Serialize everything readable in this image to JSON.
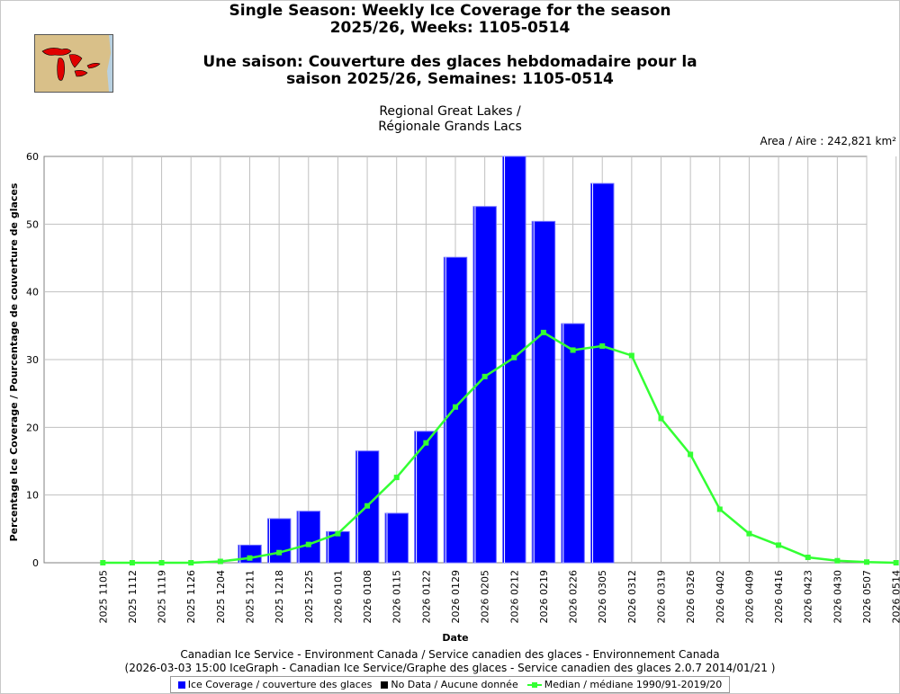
{
  "titles": {
    "en": "Single Season: Weekly Ice Coverage for the season\n2025/26, Weeks: 1105-0514",
    "fr": "Une saison: Couverture des glaces hebdomadaire pour la\nsaison 2025/26, Semaines: 1105-0514"
  },
  "region": "Regional Great Lakes /\nRégionale Grands Lacs",
  "area_label": "Area / Aire : 242,821 km²",
  "map_icon": "great-lakes-map-icon",
  "colors": {
    "bar": "#0000ff",
    "bar_edge": "#6a6aff",
    "median": "#33ff33",
    "grid": "#c0c0c0",
    "no_data": "#000000"
  },
  "chart_data": {
    "type": "bar",
    "xlabel": "Date",
    "ylabel": "Percentage Ice Coverage / Pourcentage de couverture de glaces",
    "ylim": [
      0,
      60
    ],
    "yticks": [
      0,
      10,
      20,
      30,
      40,
      50,
      60
    ],
    "grid": true,
    "legend_placement": "bottom",
    "categories": [
      "2025 1105",
      "2025 1112",
      "2025 1119",
      "2025 1126",
      "2025 1204",
      "2025 1211",
      "2025 1218",
      "2025 1225",
      "2026 0101",
      "2026 0108",
      "2026 0115",
      "2026 0122",
      "2026 0129",
      "2026 0205",
      "2026 0212",
      "2026 0219",
      "2026 0226",
      "2026 0305",
      "2026 0312",
      "2026 0319",
      "2026 0326",
      "2026 0402",
      "2026 0409",
      "2026 0416",
      "2026 0423",
      "2026 0430",
      "2026 0507",
      "2026 0514"
    ],
    "series": [
      {
        "name": "Ice Coverage / couverture des glaces",
        "type": "bar",
        "values": [
          null,
          null,
          null,
          null,
          null,
          2.6,
          6.5,
          7.6,
          4.6,
          16.5,
          7.3,
          19.4,
          45.1,
          52.6,
          60.0,
          50.4,
          35.3,
          56.0,
          null,
          null,
          null,
          null,
          null,
          null,
          null,
          null,
          null,
          null
        ]
      },
      {
        "name": "Median / médiane 1990/91-2019/20",
        "type": "line",
        "values": [
          0.0,
          0.0,
          0.0,
          0.0,
          0.2,
          0.7,
          1.5,
          2.7,
          4.3,
          8.4,
          12.6,
          17.7,
          23.0,
          27.5,
          30.3,
          34.0,
          31.4,
          32.0,
          30.6,
          21.3,
          16.0,
          7.9,
          4.3,
          2.6,
          0.8,
          0.3,
          0.1,
          0.0
        ]
      }
    ]
  },
  "legend": {
    "ice": "Ice Coverage / couverture des glaces",
    "nodata": "No Data / Aucune donnée",
    "median": "Median / médiane 1990/91-2019/20"
  },
  "footer": {
    "line1": "Canadian Ice Service - Environment Canada / Service canadien des glaces - Environnement Canada",
    "line2": "(2026-03-03 15:00 IceGraph - Canadian Ice Service/Graphe des glaces - Service canadien des glaces 2.0.7 2014/01/21 )"
  }
}
